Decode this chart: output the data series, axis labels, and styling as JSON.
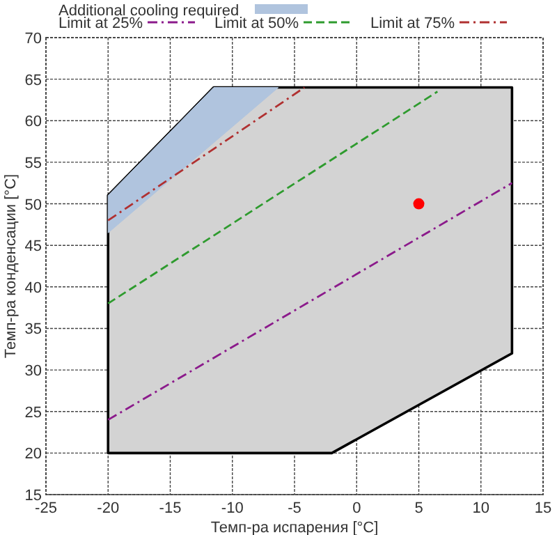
{
  "chart_data": {
    "type": "line",
    "xlabel": "Темп-ра испарения [°C]",
    "ylabel": "Темп-ра конденсации [°C]",
    "xlim": [
      -25,
      15
    ],
    "xticks": [
      -25,
      -20,
      -15,
      -10,
      -5,
      0,
      5,
      10,
      15
    ],
    "ylim": [
      15,
      70
    ],
    "yticks": [
      15,
      20,
      25,
      30,
      35,
      40,
      45,
      50,
      55,
      60,
      65,
      70
    ],
    "grid": true,
    "legend": "top",
    "series": [
      {
        "type": "area",
        "color": "#d3d3d3",
        "x": [
          -20,
          -11.5,
          12.5,
          12.5,
          -2,
          -20
        ],
        "values": [
          51,
          64,
          64,
          32,
          20,
          20
        ]
      },
      {
        "type": "area",
        "name": "Additional cooling required",
        "color": "#b0c4de",
        "x": [
          -20,
          -11.5,
          -6.3,
          -20
        ],
        "values": [
          51,
          64,
          64,
          46.5
        ]
      },
      {
        "name": "Limit at 25%",
        "color": "#8b1a8b",
        "line_style": "dotted",
        "x": [
          -20,
          12.5
        ],
        "values": [
          24,
          52.5
        ]
      },
      {
        "name": "Limit at 50%",
        "color": "#2e9b2e",
        "line_style": "dashed",
        "x": [
          -20,
          6.5
        ],
        "values": [
          38,
          63.5
        ]
      },
      {
        "name": "Limit at 75%",
        "color": "#b03030",
        "line_style": "dotted",
        "x": [
          -20,
          -4.2
        ],
        "values": [
          48,
          64
        ]
      },
      {
        "type": "scatter",
        "color": "#ff0000",
        "marker": "circle",
        "x": [
          5
        ],
        "values": [
          50
        ]
      }
    ]
  }
}
